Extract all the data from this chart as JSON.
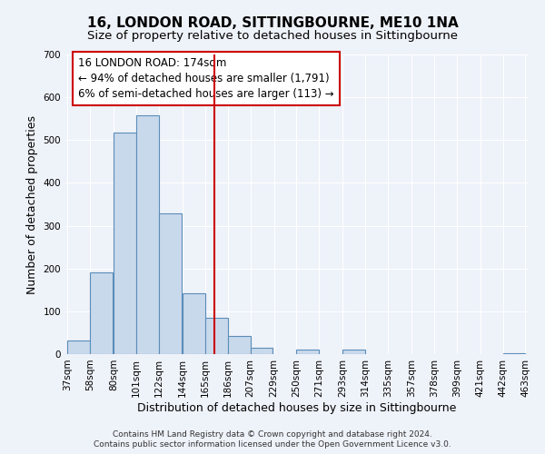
{
  "title": "16, LONDON ROAD, SITTINGBOURNE, ME10 1NA",
  "subtitle": "Size of property relative to detached houses in Sittingbourne",
  "xlabel": "Distribution of detached houses by size in Sittingbourne",
  "ylabel": "Number of detached properties",
  "bar_left_edges": [
    37,
    58,
    80,
    101,
    122,
    144,
    165,
    186,
    207,
    229,
    250,
    271,
    293,
    314,
    335,
    357,
    378,
    399,
    421,
    442
  ],
  "bar_heights": [
    32,
    190,
    518,
    557,
    328,
    143,
    85,
    42,
    15,
    0,
    10,
    0,
    10,
    0,
    0,
    0,
    0,
    0,
    0,
    3
  ],
  "bin_width": 21,
  "bar_facecolor": "#c9d9ec",
  "bar_edgecolor": "#5b8db8",
  "property_line_x": 174,
  "property_line_color": "#cc0000",
  "annotation_line1": "16 LONDON ROAD: 174sqm",
  "annotation_line2": "← 94% of detached houses are smaller (1,791)",
  "annotation_line3": "6% of semi-detached houses are larger (113) →",
  "annotation_box_facecolor": "white",
  "annotation_box_edgecolor": "#cc0000",
  "ylim": [
    0,
    700
  ],
  "yticks": [
    0,
    100,
    200,
    300,
    400,
    500,
    600,
    700
  ],
  "tick_labels": [
    "37sqm",
    "58sqm",
    "80sqm",
    "101sqm",
    "122sqm",
    "144sqm",
    "165sqm",
    "186sqm",
    "207sqm",
    "229sqm",
    "250sqm",
    "271sqm",
    "293sqm",
    "314sqm",
    "335sqm",
    "357sqm",
    "378sqm",
    "399sqm",
    "421sqm",
    "442sqm",
    "463sqm"
  ],
  "footer_line1": "Contains HM Land Registry data © Crown copyright and database right 2024.",
  "footer_line2": "Contains public sector information licensed under the Open Government Licence v3.0.",
  "bg_color": "#eef2f9",
  "plot_bg_color": "#eef2f9",
  "title_fontsize": 11,
  "subtitle_fontsize": 9.5,
  "axis_label_fontsize": 9,
  "tick_fontsize": 7.5,
  "annotation_fontsize": 8.5,
  "footer_fontsize": 6.5
}
